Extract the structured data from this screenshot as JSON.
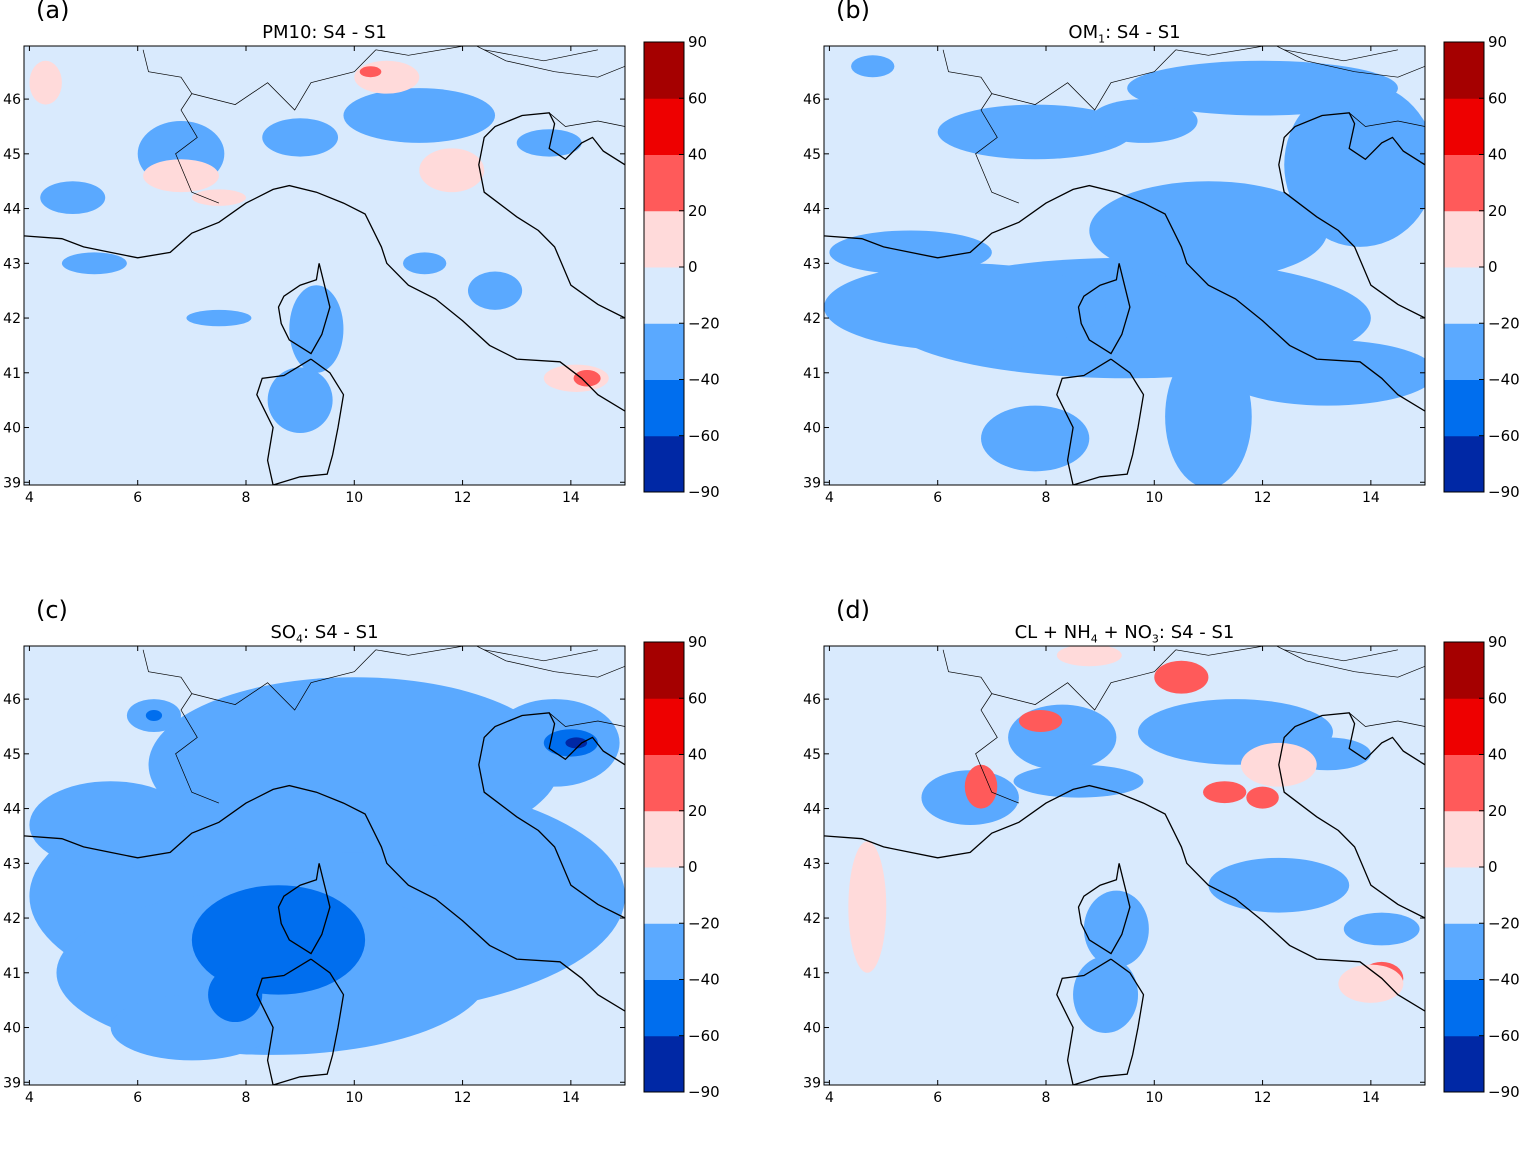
{
  "panels": [
    {
      "label": "(a)",
      "title_parts": [
        [
          "PM10:  S4 - S1",
          ""
        ]
      ]
    },
    {
      "label": "(b)",
      "title_parts": [
        [
          "OM",
          ""
        ],
        [
          "1",
          "sub"
        ],
        [
          ":  S4 - S1",
          ""
        ]
      ]
    },
    {
      "label": "(c)",
      "title_parts": [
        [
          "SO",
          ""
        ],
        [
          "4",
          "sub"
        ],
        [
          ":  S4 - S1",
          ""
        ]
      ]
    },
    {
      "label": "(d)",
      "title_parts": [
        [
          "CL + NH",
          ""
        ],
        [
          "4",
          "sub"
        ],
        [
          "  + NO",
          ""
        ],
        [
          "3",
          "sub"
        ],
        [
          ": S4 - S1",
          ""
        ]
      ]
    }
  ],
  "axes": {
    "x_ticks": [
      "4",
      "6",
      "8",
      "10",
      "12",
      "14"
    ],
    "y_ticks": [
      "39",
      "40",
      "41",
      "42",
      "43",
      "44",
      "45",
      "46"
    ],
    "xlim": [
      3.9,
      15
    ],
    "ylim": [
      38.95,
      46.97
    ]
  },
  "colorbar": {
    "tick_labels": [
      "90",
      "60",
      "40",
      "20",
      "0",
      "−20",
      "−40",
      "−60",
      "−90"
    ],
    "levels": [
      -90,
      -60,
      -40,
      -20,
      0,
      20,
      40,
      60,
      90
    ],
    "colors": [
      "#0028a5",
      "#006eee",
      "#5aa9ff",
      "#d9eafd",
      "#ffdada",
      "#ff5a5a",
      "#ee0000",
      "#a50000"
    ]
  }
}
